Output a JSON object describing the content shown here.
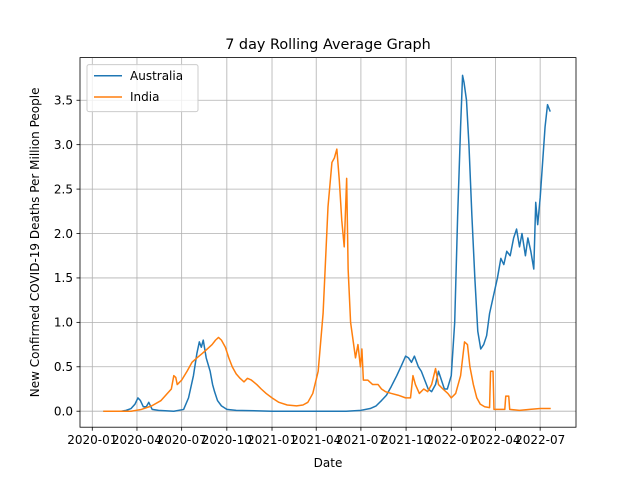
{
  "chart_data": {
    "type": "line",
    "title": "7 day Rolling Average Graph",
    "xlabel": "Date",
    "ylabel": "New Confirmed COVID-19 Deaths Per Million People",
    "grid": true,
    "legend_placement": "top-left",
    "xlim": [
      "2019-12-07",
      "2022-09-12"
    ],
    "ylim": [
      -0.18,
      3.98
    ],
    "x_ticks": [
      {
        "date": "2020-01-01",
        "label": "2020-01"
      },
      {
        "date": "2020-04-01",
        "label": "2020-04"
      },
      {
        "date": "2020-07-01",
        "label": "2020-07"
      },
      {
        "date": "2020-10-01",
        "label": "2020-10"
      },
      {
        "date": "2021-01-01",
        "label": "2021-01"
      },
      {
        "date": "2021-04-01",
        "label": "2021-04"
      },
      {
        "date": "2021-07-01",
        "label": "2021-07"
      },
      {
        "date": "2021-10-01",
        "label": "2021-10"
      },
      {
        "date": "2022-01-01",
        "label": "2022-01"
      },
      {
        "date": "2022-04-01",
        "label": "2022-04"
      },
      {
        "date": "2022-07-01",
        "label": "2022-07"
      }
    ],
    "y_ticks": [
      {
        "value": 0.0,
        "label": "0.0"
      },
      {
        "value": 0.5,
        "label": "0.5"
      },
      {
        "value": 1.0,
        "label": "1.0"
      },
      {
        "value": 1.5,
        "label": "1.5"
      },
      {
        "value": 2.0,
        "label": "2.0"
      },
      {
        "value": 2.5,
        "label": "2.5"
      },
      {
        "value": 3.0,
        "label": "3.0"
      },
      {
        "value": 3.5,
        "label": "3.5"
      }
    ],
    "series": [
      {
        "name": "Australia",
        "color": "#1f77b4",
        "points": [
          [
            "2020-01-25",
            0.0
          ],
          [
            "2020-02-29",
            0.0
          ],
          [
            "2020-03-10",
            0.01
          ],
          [
            "2020-03-20",
            0.03
          ],
          [
            "2020-03-28",
            0.08
          ],
          [
            "2020-04-03",
            0.15
          ],
          [
            "2020-04-08",
            0.12
          ],
          [
            "2020-04-14",
            0.05
          ],
          [
            "2020-04-20",
            0.05
          ],
          [
            "2020-04-25",
            0.1
          ],
          [
            "2020-05-02",
            0.02
          ],
          [
            "2020-05-15",
            0.01
          ],
          [
            "2020-06-15",
            0.0
          ],
          [
            "2020-07-05",
            0.02
          ],
          [
            "2020-07-15",
            0.15
          ],
          [
            "2020-07-25",
            0.4
          ],
          [
            "2020-08-01",
            0.65
          ],
          [
            "2020-08-06",
            0.78
          ],
          [
            "2020-08-10",
            0.72
          ],
          [
            "2020-08-14",
            0.8
          ],
          [
            "2020-08-20",
            0.6
          ],
          [
            "2020-08-28",
            0.45
          ],
          [
            "2020-09-02",
            0.3
          ],
          [
            "2020-09-06",
            0.22
          ],
          [
            "2020-09-12",
            0.12
          ],
          [
            "2020-09-20",
            0.06
          ],
          [
            "2020-10-01",
            0.02
          ],
          [
            "2020-10-20",
            0.01
          ],
          [
            "2021-01-01",
            0.0
          ],
          [
            "2021-06-01",
            0.0
          ],
          [
            "2021-07-01",
            0.01
          ],
          [
            "2021-07-20",
            0.03
          ],
          [
            "2021-08-01",
            0.06
          ],
          [
            "2021-08-12",
            0.12
          ],
          [
            "2021-08-22",
            0.18
          ],
          [
            "2021-09-01",
            0.28
          ],
          [
            "2021-09-12",
            0.4
          ],
          [
            "2021-09-22",
            0.52
          ],
          [
            "2021-09-30",
            0.62
          ],
          [
            "2021-10-06",
            0.6
          ],
          [
            "2021-10-12",
            0.55
          ],
          [
            "2021-10-18",
            0.62
          ],
          [
            "2021-10-26",
            0.5
          ],
          [
            "2021-11-01",
            0.45
          ],
          [
            "2021-11-08",
            0.35
          ],
          [
            "2021-11-15",
            0.25
          ],
          [
            "2021-11-22",
            0.22
          ],
          [
            "2021-11-30",
            0.3
          ],
          [
            "2021-12-06",
            0.45
          ],
          [
            "2021-12-12",
            0.35
          ],
          [
            "2021-12-18",
            0.25
          ],
          [
            "2021-12-24",
            0.25
          ],
          [
            "2022-01-01",
            0.4
          ],
          [
            "2022-01-08",
            1.0
          ],
          [
            "2022-01-14",
            2.2
          ],
          [
            "2022-01-20",
            3.2
          ],
          [
            "2022-01-24",
            3.78
          ],
          [
            "2022-01-27",
            3.7
          ],
          [
            "2022-02-01",
            3.5
          ],
          [
            "2022-02-06",
            3.0
          ],
          [
            "2022-02-12",
            2.2
          ],
          [
            "2022-02-18",
            1.5
          ],
          [
            "2022-02-24",
            0.9
          ],
          [
            "2022-03-02",
            0.7
          ],
          [
            "2022-03-08",
            0.75
          ],
          [
            "2022-03-14",
            0.85
          ],
          [
            "2022-03-20",
            1.1
          ],
          [
            "2022-03-28",
            1.3
          ],
          [
            "2022-04-05",
            1.5
          ],
          [
            "2022-04-12",
            1.72
          ],
          [
            "2022-04-18",
            1.65
          ],
          [
            "2022-04-24",
            1.8
          ],
          [
            "2022-05-01",
            1.75
          ],
          [
            "2022-05-08",
            1.95
          ],
          [
            "2022-05-14",
            2.05
          ],
          [
            "2022-05-20",
            1.85
          ],
          [
            "2022-05-25",
            2.0
          ],
          [
            "2022-06-01",
            1.75
          ],
          [
            "2022-06-06",
            1.95
          ],
          [
            "2022-06-12",
            1.8
          ],
          [
            "2022-06-18",
            1.6
          ],
          [
            "2022-06-22",
            2.35
          ],
          [
            "2022-06-26",
            2.1
          ],
          [
            "2022-07-01",
            2.4
          ],
          [
            "2022-07-06",
            2.8
          ],
          [
            "2022-07-11",
            3.2
          ],
          [
            "2022-07-16",
            3.45
          ],
          [
            "2022-07-21",
            3.38
          ]
        ]
      },
      {
        "name": "India",
        "color": "#ff7f0e",
        "points": [
          [
            "2020-01-25",
            0.0
          ],
          [
            "2020-03-01",
            0.0
          ],
          [
            "2020-03-20",
            0.0
          ],
          [
            "2020-04-10",
            0.02
          ],
          [
            "2020-05-01",
            0.06
          ],
          [
            "2020-05-20",
            0.12
          ],
          [
            "2020-06-10",
            0.25
          ],
          [
            "2020-06-15",
            0.4
          ],
          [
            "2020-06-19",
            0.38
          ],
          [
            "2020-06-22",
            0.3
          ],
          [
            "2020-07-01",
            0.35
          ],
          [
            "2020-07-12",
            0.45
          ],
          [
            "2020-07-22",
            0.55
          ],
          [
            "2020-08-01",
            0.6
          ],
          [
            "2020-08-12",
            0.65
          ],
          [
            "2020-08-22",
            0.7
          ],
          [
            "2020-09-01",
            0.75
          ],
          [
            "2020-09-08",
            0.8
          ],
          [
            "2020-09-14",
            0.83
          ],
          [
            "2020-09-20",
            0.8
          ],
          [
            "2020-09-28",
            0.72
          ],
          [
            "2020-10-05",
            0.6
          ],
          [
            "2020-10-12",
            0.5
          ],
          [
            "2020-10-20",
            0.42
          ],
          [
            "2020-10-28",
            0.37
          ],
          [
            "2020-11-05",
            0.33
          ],
          [
            "2020-11-12",
            0.37
          ],
          [
            "2020-11-20",
            0.35
          ],
          [
            "2020-12-01",
            0.3
          ],
          [
            "2020-12-10",
            0.25
          ],
          [
            "2020-12-20",
            0.2
          ],
          [
            "2021-01-01",
            0.15
          ],
          [
            "2021-01-15",
            0.1
          ],
          [
            "2021-02-01",
            0.07
          ],
          [
            "2021-02-20",
            0.06
          ],
          [
            "2021-03-05",
            0.07
          ],
          [
            "2021-03-15",
            0.1
          ],
          [
            "2021-03-25",
            0.2
          ],
          [
            "2021-04-05",
            0.45
          ],
          [
            "2021-04-15",
            1.1
          ],
          [
            "2021-04-25",
            2.3
          ],
          [
            "2021-05-03",
            2.8
          ],
          [
            "2021-05-08",
            2.85
          ],
          [
            "2021-05-13",
            2.95
          ],
          [
            "2021-05-18",
            2.6
          ],
          [
            "2021-05-23",
            2.15
          ],
          [
            "2021-05-28",
            1.85
          ],
          [
            "2021-06-02",
            2.62
          ],
          [
            "2021-06-05",
            1.6
          ],
          [
            "2021-06-10",
            1.0
          ],
          [
            "2021-06-20",
            0.6
          ],
          [
            "2021-06-25",
            0.75
          ],
          [
            "2021-06-30",
            0.5
          ],
          [
            "2021-07-03",
            0.7
          ],
          [
            "2021-07-06",
            0.35
          ],
          [
            "2021-07-15",
            0.35
          ],
          [
            "2021-07-25",
            0.3
          ],
          [
            "2021-08-05",
            0.3
          ],
          [
            "2021-08-12",
            0.25
          ],
          [
            "2021-08-20",
            0.22
          ],
          [
            "2021-09-01",
            0.2
          ],
          [
            "2021-09-15",
            0.18
          ],
          [
            "2021-09-30",
            0.15
          ],
          [
            "2021-10-10",
            0.15
          ],
          [
            "2021-10-15",
            0.4
          ],
          [
            "2021-10-20",
            0.3
          ],
          [
            "2021-10-28",
            0.2
          ],
          [
            "2021-11-06",
            0.25
          ],
          [
            "2021-11-14",
            0.22
          ],
          [
            "2021-11-22",
            0.3
          ],
          [
            "2021-11-30",
            0.48
          ],
          [
            "2021-12-06",
            0.3
          ],
          [
            "2021-12-15",
            0.25
          ],
          [
            "2021-12-25",
            0.2
          ],
          [
            "2022-01-01",
            0.15
          ],
          [
            "2022-01-10",
            0.2
          ],
          [
            "2022-01-20",
            0.4
          ],
          [
            "2022-01-28",
            0.78
          ],
          [
            "2022-02-03",
            0.75
          ],
          [
            "2022-02-08",
            0.5
          ],
          [
            "2022-02-15",
            0.3
          ],
          [
            "2022-02-22",
            0.15
          ],
          [
            "2022-03-01",
            0.08
          ],
          [
            "2022-03-10",
            0.05
          ],
          [
            "2022-03-20",
            0.04
          ],
          [
            "2022-03-22",
            0.45
          ],
          [
            "2022-03-27",
            0.45
          ],
          [
            "2022-03-29",
            0.02
          ],
          [
            "2022-04-20",
            0.02
          ],
          [
            "2022-04-22",
            0.17
          ],
          [
            "2022-04-28",
            0.17
          ],
          [
            "2022-04-30",
            0.02
          ],
          [
            "2022-05-20",
            0.01
          ],
          [
            "2022-06-10",
            0.02
          ],
          [
            "2022-07-01",
            0.03
          ],
          [
            "2022-07-21",
            0.03
          ]
        ]
      }
    ]
  }
}
